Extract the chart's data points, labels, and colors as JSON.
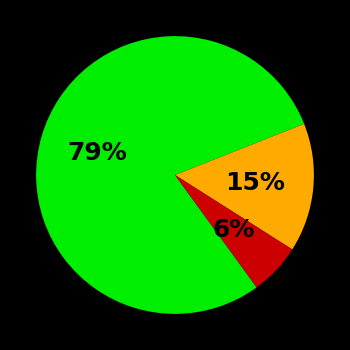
{
  "slices": [
    79,
    15,
    6
  ],
  "colors": [
    "#00ee00",
    "#ffaa00",
    "#cc0000"
  ],
  "labels": [
    "79%",
    "15%",
    "6%"
  ],
  "background_color": "#000000",
  "text_color": "#000000",
  "startangle": -54,
  "label_fontsize": 18,
  "label_fontweight": "bold",
  "label_radii": [
    0.58,
    0.58,
    0.58
  ]
}
